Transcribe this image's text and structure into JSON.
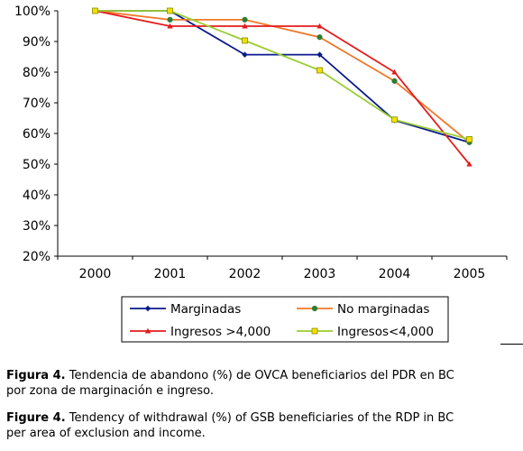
{
  "chart_data": {
    "type": "line",
    "categories": [
      "2000",
      "2001",
      "2002",
      "2003",
      "2004",
      "2005"
    ],
    "yticks": [
      "20%",
      "30%",
      "40%",
      "50%",
      "60%",
      "70%",
      "80%",
      "90%",
      "100%"
    ],
    "ylim": [
      20,
      100
    ],
    "grid": false,
    "legend_position": "bottom",
    "series": [
      {
        "name": "Marginadas",
        "color": "#0a1a8c",
        "marker": "diamond",
        "values": [
          100,
          100,
          85.7,
          85.7,
          64.3,
          57.1
        ]
      },
      {
        "name": "No marginadas",
        "color": "#f07828",
        "marker": "circle",
        "values": [
          100,
          97.1,
          97.1,
          91.4,
          77.1,
          57.1
        ]
      },
      {
        "name": "Ingresos >4,000",
        "color": "#e41c1c",
        "marker": "triangle",
        "values": [
          100,
          95,
          95,
          95,
          80,
          50
        ]
      },
      {
        "name": "Ingresos<4,000",
        "color": "#9acd32",
        "marker": "square",
        "values": [
          100,
          100,
          90.3,
          80.6,
          64.5,
          58.1
        ]
      }
    ]
  },
  "caption_es": {
    "label": "Figura 4.",
    "text": " Tendencia de abandono (%) de OVCA beneficiarios del PDR en BC por zona de marginación e ingreso."
  },
  "caption_en": {
    "label": "Figure 4.",
    "text": " Tendency of withdrawal (%) of GSB beneficiaries of the RDP in BC per area of exclusion and income."
  }
}
